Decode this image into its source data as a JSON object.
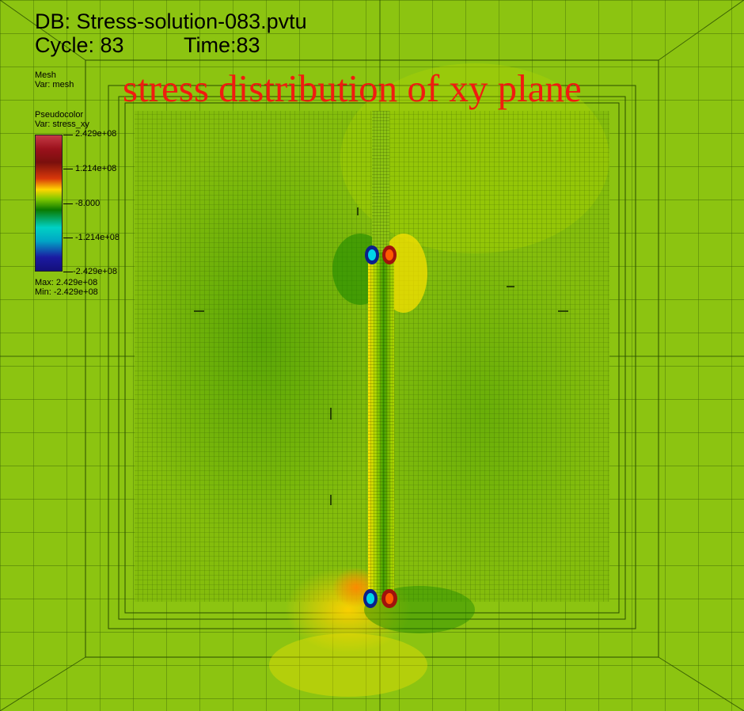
{
  "header": {
    "db": "DB: Stress-solution-083.pvtu",
    "cycle": "Cycle: 83",
    "time": "Time:83"
  },
  "plot_title": "stress distribution of xy plane",
  "legend": {
    "mesh_label": "Mesh",
    "mesh_var": "Var: mesh",
    "pc_label": "Pseudocolor",
    "pc_var": "Var: stress_xy",
    "ticks": [
      "2.429e+08",
      "1.214e+08",
      "-8.000",
      "-1.214e+08",
      "-2.429e+08"
    ],
    "max": "Max:  2.429e+08",
    "min": "Min: -2.429e+08"
  },
  "colors": {
    "background": "#8cc411",
    "title": "#f11b10"
  }
}
